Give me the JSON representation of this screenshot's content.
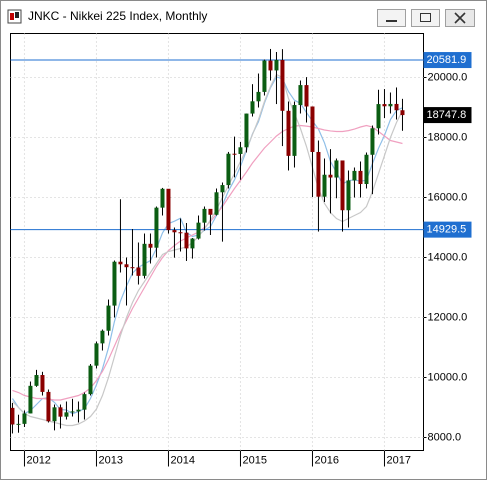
{
  "chart_data": {
    "type": "candlestick",
    "title": "JNKC - Nikkei 225 Index, Monthly",
    "x": [
      2011.833,
      2011.917,
      2012,
      2012.083,
      2012.167,
      2012.25,
      2012.333,
      2012.417,
      2012.5,
      2012.583,
      2012.667,
      2012.75,
      2012.833,
      2012.917,
      2013,
      2013.083,
      2013.167,
      2013.25,
      2013.333,
      2013.417,
      2013.5,
      2013.583,
      2013.667,
      2013.75,
      2013.833,
      2013.917,
      2014,
      2014.083,
      2014.167,
      2014.25,
      2014.333,
      2014.417,
      2014.5,
      2014.583,
      2014.667,
      2014.75,
      2014.833,
      2014.917,
      2015,
      2015.083,
      2015.167,
      2015.25,
      2015.333,
      2015.417,
      2015.5,
      2015.583,
      2015.667,
      2015.75,
      2015.833,
      2015.917,
      2016,
      2016.083,
      2016.167,
      2016.25,
      2016.333,
      2016.417,
      2016.5,
      2016.583,
      2016.667,
      2016.75,
      2016.833,
      2016.917,
      2017,
      2017.083,
      2017.167,
      2017.25
    ],
    "open": [
      8988,
      8434,
      8455,
      8802,
      9723,
      10083,
      9520,
      8542,
      9006,
      8695,
      8839,
      8870,
      8928,
      9446,
      10395,
      11138,
      11559,
      12397,
      13860,
      13774,
      13677,
      13668,
      13389,
      14456,
      14327,
      15662,
      16291,
      14914,
      14841,
      14828,
      14304,
      14632,
      15162,
      15621,
      15425,
      16174,
      16414,
      17460,
      17451,
      17674,
      18798,
      19207,
      19520,
      20563,
      20236,
      20585,
      18890,
      17388,
      19083,
      19747,
      19034,
      17518,
      16027,
      16759,
      16666,
      17235,
      15576,
      16569,
      16887,
      16450,
      17425,
      18308,
      19114,
      19041,
      19119,
      18909
    ],
    "high": [
      9152,
      8760,
      8900,
      9866,
      10255,
      10190,
      9600,
      9100,
      9100,
      9200,
      9290,
      9200,
      9500,
      10450,
      11200,
      11600,
      12600,
      13900,
      15942,
      14000,
      14950,
      14500,
      14800,
      14800,
      15700,
      16320,
      16200,
      15000,
      15300,
      15150,
      14650,
      15400,
      15700,
      15600,
      16300,
      16500,
      17520,
      18030,
      17850,
      18800,
      19778,
      20133,
      20600,
      20952,
      20850,
      20946,
      19200,
      19200,
      19900,
      20012,
      18950,
      17900,
      17300,
      17613,
      17300,
      17100,
      16900,
      17000,
      17200,
      17500,
      18400,
      19592,
      19615,
      19500,
      19668,
      19289
    ],
    "low": [
      8135,
      8160,
      8350,
      8800,
      9690,
      9400,
      8500,
      8238,
      8300,
      8600,
      8700,
      8500,
      8600,
      9400,
      10300,
      10900,
      11400,
      12000,
      13500,
      12400,
      13400,
      13100,
      13300,
      13800,
      14000,
      15400,
      14800,
      13995,
      14200,
      13885,
      13964,
      14600,
      14900,
      14750,
      15400,
      14529,
      16300,
      16672,
      16592,
      17500,
      18700,
      19000,
      19400,
      19900,
      19115,
      17714,
      16901,
      17000,
      18800,
      18500,
      16017,
      14865,
      15850,
      15471,
      15975,
      14864,
      15000,
      16000,
      16000,
      16300,
      16111,
      18100,
      18650,
      18800,
      18600,
      18224
    ],
    "close": [
      8434,
      8455,
      8802,
      9723,
      10083,
      9520,
      8542,
      9006,
      8695,
      8839,
      8870,
      8928,
      9446,
      10395,
      11138,
      11559,
      12397,
      13860,
      13774,
      13677,
      13668,
      13389,
      14456,
      14327,
      15662,
      16291,
      14914,
      14841,
      14828,
      14304,
      14632,
      15162,
      15621,
      15425,
      16174,
      16414,
      17460,
      17451,
      17674,
      18798,
      19207,
      19520,
      20563,
      20236,
      20585,
      18890,
      17388,
      19083,
      19747,
      19034,
      17518,
      16027,
      16759,
      16666,
      17235,
      15576,
      16569,
      16887,
      16450,
      17425,
      18308,
      19114,
      19041,
      19119,
      18909,
      18747.8
    ],
    "up_color": "#0b5d12",
    "down_color": "#8b0000",
    "wick_color": "#000000",
    "series": [
      {
        "color": "#8fbfe8",
        "values": [
          9300,
          9000,
          8800,
          8900,
          9100,
          9300,
          9330,
          9170,
          8930,
          8920,
          8790,
          8870,
          8960,
          9300,
          9760,
          10290,
          10990,
          11870,
          12550,
          13050,
          13480,
          13670,
          13790,
          13900,
          14300,
          14820,
          15130,
          15210,
          15310,
          14840,
          14700,
          14750,
          14910,
          15030,
          15400,
          15760,
          16220,
          16590,
          17040,
          17560,
          18120,
          18530,
          19150,
          19660,
          20020,
          19960,
          19530,
          19240,
          19140,
          18830,
          18550,
          18280,
          17820,
          17200,
          16840,
          16450,
          16560,
          16590,
          16540,
          16580,
          17130,
          17640,
          18070,
          18600,
          18900,
          18990
        ]
      },
      {
        "color": "#f0a0c0",
        "values": [
          9570,
          9500,
          9400,
          9350,
          9300,
          9300,
          9280,
          9250,
          9250,
          9300,
          9350,
          9400,
          9500,
          9650,
          9900,
          10200,
          10600,
          11050,
          11500,
          11900,
          12300,
          12650,
          13000,
          13350,
          13700,
          14000,
          14230,
          14400,
          14550,
          14650,
          14750,
          14850,
          15000,
          15200,
          15450,
          15700,
          16000,
          16300,
          16570,
          16850,
          17150,
          17400,
          17650,
          17850,
          18050,
          18200,
          18300,
          18380,
          18400,
          18380,
          18350,
          18300,
          18250,
          18220,
          18200,
          18200,
          18230,
          18280,
          18350,
          18400,
          18350,
          18200,
          18050,
          17900,
          17850,
          17800
        ]
      },
      {
        "color": "#c8c8c8",
        "values": [
          9200,
          9000,
          8800,
          8700,
          8650,
          8600,
          8550,
          8500,
          8450,
          8400,
          8400,
          8450,
          8550,
          8700,
          8950,
          9400,
          10000,
          10700,
          11400,
          12000,
          12500,
          12900,
          13200,
          13500,
          13800,
          14100,
          14200,
          14250,
          14300,
          14350,
          14500,
          14700,
          14950,
          15250,
          15600,
          16000,
          16400,
          16800,
          17200,
          17600,
          18100,
          18600,
          19200,
          19700,
          20100,
          20000,
          19300,
          18800,
          18300,
          17700,
          17000,
          16300,
          15800,
          15500,
          15300,
          15200,
          15300,
          15400,
          15500,
          15700,
          16200,
          16800,
          17400,
          18000,
          18500,
          18900
        ]
      }
    ],
    "hlines": [
      {
        "value": 20581.9,
        "color": "#1f6fd0"
      },
      {
        "value": 14929.5,
        "color": "#1f6fd0"
      }
    ],
    "xlim": [
      2011.806,
      2017.542
    ],
    "xticks": [
      2012,
      2013,
      2014,
      2015,
      2016,
      2017
    ],
    "ylim": [
      7567,
      21467
    ],
    "yticks": [
      {
        "value": 8000,
        "label": "8000.0"
      },
      {
        "value": 10000,
        "label": "10000.0"
      },
      {
        "value": 12000,
        "label": "12000.0"
      },
      {
        "value": 14000,
        "label": "14000.0"
      },
      {
        "value": 16000,
        "label": "16000.0"
      },
      {
        "value": 18000,
        "label": "18000.0"
      },
      {
        "value": 20000,
        "label": "20000.0"
      }
    ],
    "grid": true
  }
}
